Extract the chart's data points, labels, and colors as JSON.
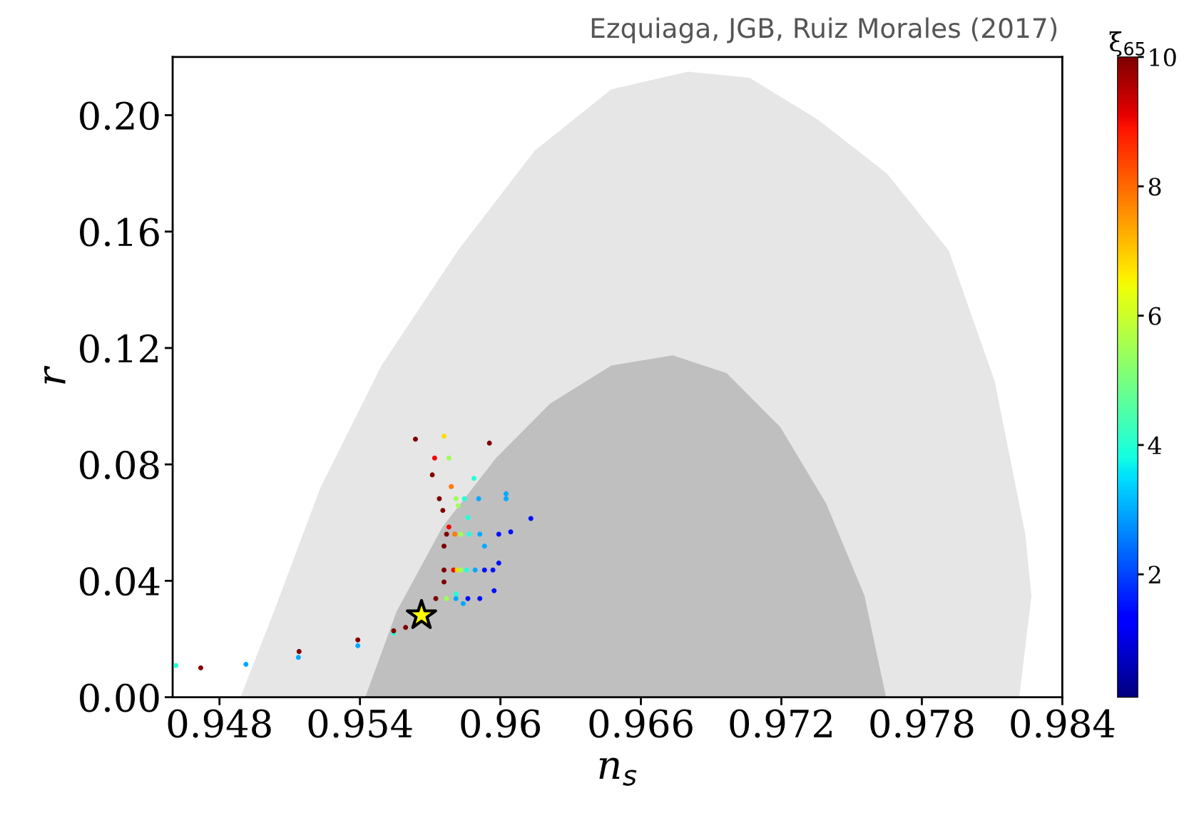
{
  "chart_data": {
    "type": "scatter",
    "xlabel": "n$_{s}$",
    "ylabel": "r",
    "clabel": "ξ$_{65}$",
    "annotations": [
      "Ezquiaga, JGB, Ruiz Morales (2017)"
    ],
    "xlim": [
      0.946,
      0.984
    ],
    "xticks": [
      0.948,
      0.954,
      0.96,
      0.966,
      0.972,
      0.978,
      0.984
    ],
    "ylim": [
      0,
      0.22
    ],
    "yticks": [
      {
        "value": 0,
        "label": "0.00"
      },
      {
        "value": 0.04,
        "label": "0.04"
      },
      {
        "value": 0.08,
        "label": "0.08"
      },
      {
        "value": 0.12,
        "label": "0.12"
      },
      {
        "value": 0.16,
        "label": "0.16"
      },
      {
        "value": 0.2,
        "label": "0.20"
      }
    ],
    "clim": [
      0.1,
      10
    ],
    "cticks": [
      2,
      4,
      6,
      8,
      10
    ],
    "grid": false,
    "legend": false,
    "series": [
      {
        "type": "area",
        "color": "#e6e6e6",
        "x": [
          0.94892,
          0.95035,
          0.95232,
          0.95493,
          0.9582,
          0.96147,
          0.96474,
          0.96801,
          0.97063,
          0.97357,
          0.97651,
          0.97913,
          0.98109,
          0.9824,
          0.98266,
          0.98214
        ],
        "values": [
          0,
          0.0295,
          0.0717,
          0.1138,
          0.1534,
          0.1876,
          0.2087,
          0.2148,
          0.2127,
          0.1982,
          0.1797,
          0.1534,
          0.1086,
          0.0559,
          0.0348,
          0
        ]
      },
      {
        "type": "area",
        "color": "#bfbfbf",
        "x": [
          0.95425,
          0.95559,
          0.95755,
          0.95984,
          0.96213,
          0.96474,
          0.96736,
          0.96965,
          0.97193,
          0.9739,
          0.97553,
          0.97645
        ],
        "values": [
          0,
          0.0295,
          0.0585,
          0.0822,
          0.1007,
          0.1138,
          0.1173,
          0.1112,
          0.0928,
          0.0664,
          0.0348,
          0
        ]
      },
      {
        "type": "scatter",
        "marker": "circle",
        "x": [
          0.94614,
          0.9472,
          0.94913,
          0.95137,
          0.9514,
          0.95391,
          0.95391,
          0.95544,
          0.95544,
          0.95595,
          0.95637,
          0.95953,
          0.95759,
          0.9613,
          0.9578,
          0.95759,
          0.95973,
          0.96024,
          0.95887,
          0.9578,
          0.96044,
          0.95993,
          0.95932,
          0.95861,
          0.9582,
          0.9579,
          0.95719,
          0.95709,
          0.95754,
          0.95759,
          0.95841,
          0.9581,
          0.95759,
          0.958,
          0.95815,
          0.95831,
          0.95856,
          0.95892,
          0.95932,
          0.95968,
          0.9577,
          0.95805,
          0.95831,
          0.95866,
          0.95912,
          0.95993,
          0.95739,
          0.9581,
          0.95846,
          0.95907,
          0.96024,
          0.95724,
          0.9577,
          0.9581,
          0.95861,
          0.95912
        ],
        "values": [
          0.0109,
          0.0101,
          0.0113,
          0.0137,
          0.0157,
          0.0177,
          0.0197,
          0.022,
          0.0228,
          0.024,
          0.0887,
          0.0873,
          0.0897,
          0.0614,
          0.0585,
          0.0396,
          0.0366,
          0.0699,
          0.0752,
          0.0822,
          0.0568,
          0.0461,
          0.0519,
          0.0617,
          0.0658,
          0.0724,
          0.0822,
          0.0764,
          0.0642,
          0.0519,
          0.0322,
          0.0355,
          0.0437,
          0.0437,
          0.0437,
          0.0437,
          0.0437,
          0.0437,
          0.0437,
          0.0437,
          0.056,
          0.056,
          0.056,
          0.056,
          0.056,
          0.056,
          0.0682,
          0.0682,
          0.0682,
          0.0682,
          0.0682,
          0.0339,
          0.0339,
          0.0339,
          0.0339,
          0.0339
        ],
        "cvalues": [
          4,
          10,
          3,
          3,
          10,
          3,
          10,
          4,
          10,
          10,
          10,
          10,
          6.8,
          1.5,
          9,
          10,
          1.5,
          3,
          4,
          5.5,
          1.5,
          1.5,
          3,
          4,
          5.5,
          7.7,
          9,
          10,
          10,
          10,
          3,
          4,
          10,
          9,
          6.8,
          5.5,
          4,
          3,
          1.5,
          1.5,
          10,
          7.7,
          5.5,
          4,
          3,
          1.5,
          10,
          5.5,
          4,
          3,
          3,
          10,
          5.5,
          3,
          1.5,
          1.5
        ],
        "colors": [
          "#24ffdb",
          "#800000",
          "#00abff",
          "#00abff",
          "#800000",
          "#00abff",
          "#800000",
          "#24ffdb",
          "#800000",
          "#800000",
          "#800000",
          "#800000",
          "#ffdb00",
          "#0010ff",
          "#f50000",
          "#800000",
          "#0010ff",
          "#00abff",
          "#24ffdb",
          "#a0ff56",
          "#0010ff",
          "#0010ff",
          "#00abff",
          "#24ffdb",
          "#a0ff56",
          "#ff6d00",
          "#f50000",
          "#800000",
          "#800000",
          "#800000",
          "#00abff",
          "#24ffdb",
          "#800000",
          "#f50000",
          "#ffdb00",
          "#a0ff56",
          "#24ffdb",
          "#00abff",
          "#0010ff",
          "#0010ff",
          "#800000",
          "#ff6d00",
          "#a0ff56",
          "#24ffdb",
          "#00abff",
          "#0010ff",
          "#800000",
          "#a0ff56",
          "#24ffdb",
          "#00abff",
          "#00abff",
          "#800000",
          "#a0ff56",
          "#00abff",
          "#0010ff",
          "#0010ff"
        ]
      },
      {
        "marker": "star",
        "color": "#ffff00",
        "x": [
          0.95663
        ],
        "values": [
          0.0281
        ]
      }
    ]
  }
}
